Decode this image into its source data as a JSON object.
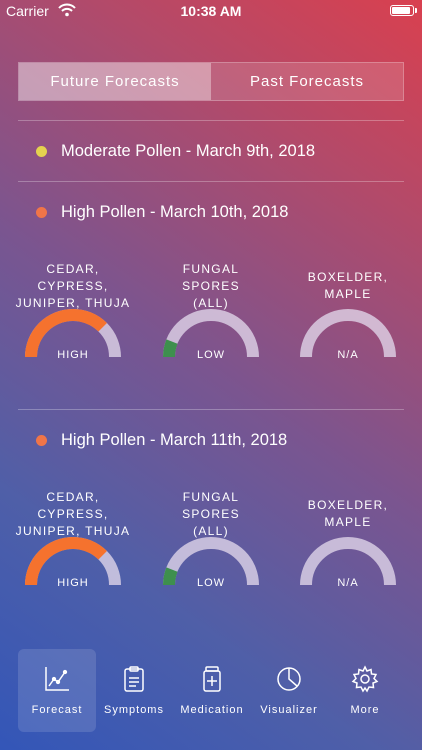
{
  "status_bar": {
    "carrier": "Carrier",
    "time": "10:38 AM"
  },
  "tabs_segment": [
    {
      "label": "Future Forecasts",
      "active": true
    },
    {
      "label": "Past Forecasts",
      "active": false
    }
  ],
  "forecasts": [
    {
      "label": "Moderate Pollen - March 9th, 2018",
      "dot_color": "#e4d24f"
    },
    {
      "label": "High Pollen - March 10th, 2018",
      "dot_color": "#f07548",
      "gauges": [
        {
          "name_line1": "CEDAR, CYPRESS,",
          "name_line2": "JUNIPER, THUJA",
          "level": "HIGH",
          "fill": 0.75,
          "color": "#f5722e"
        },
        {
          "name_line1": "FUNGAL SPORES",
          "name_line2": "(ALL)",
          "level": "LOW",
          "fill": 0.12,
          "color": "#3e8f4e"
        },
        {
          "name_line1": "BOXELDER,",
          "name_line2": "MAPLE",
          "level": "N/A",
          "fill": 0,
          "color": "#cccccc"
        }
      ]
    },
    {
      "label": "High Pollen - March 11th, 2018",
      "dot_color": "#f07548",
      "gauges": [
        {
          "name_line1": "CEDAR, CYPRESS,",
          "name_line2": "JUNIPER, THUJA",
          "level": "HIGH",
          "fill": 0.75,
          "color": "#f5722e"
        },
        {
          "name_line1": "FUNGAL SPORES",
          "name_line2": "(ALL)",
          "level": "LOW",
          "fill": 0.12,
          "color": "#3e8f4e"
        },
        {
          "name_line1": "BOXELDER,",
          "name_line2": "MAPLE",
          "level": "N/A",
          "fill": 0,
          "color": "#cccccc"
        }
      ]
    }
  ],
  "tab_bar": [
    {
      "label": "Forecast",
      "icon": "chart-line-icon",
      "active": true
    },
    {
      "label": "Symptoms",
      "icon": "clipboard-icon",
      "active": false
    },
    {
      "label": "Medication",
      "icon": "medicine-bottle-icon",
      "active": false
    },
    {
      "label": "Visualizer",
      "icon": "pie-chart-icon",
      "active": false
    },
    {
      "label": "More",
      "icon": "gear-icon",
      "active": false
    }
  ]
}
